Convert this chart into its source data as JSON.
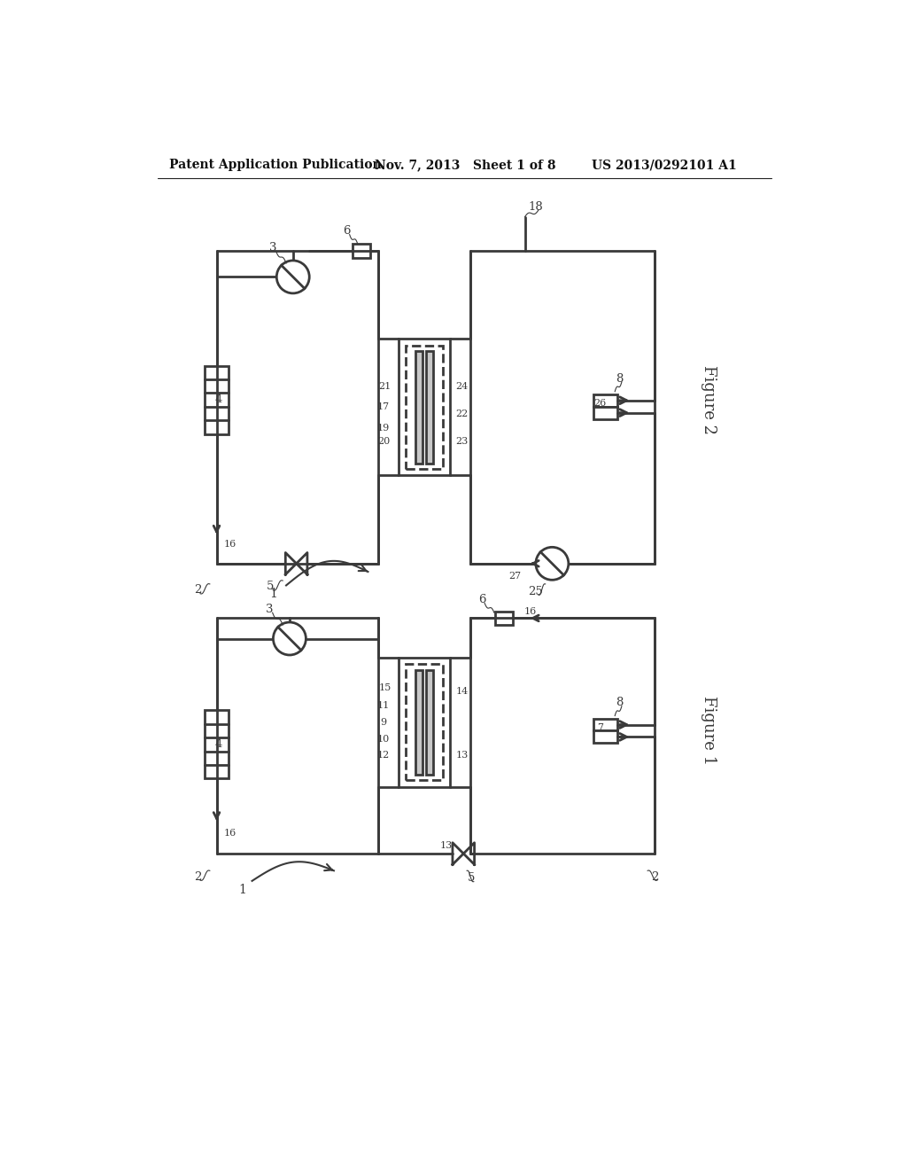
{
  "bg_color": "#ffffff",
  "line_color": "#3a3a3a",
  "lw": 2.0,
  "header_text": "Patent Application Publication",
  "header_date": "Nov. 7, 2013   Sheet 1 of 8",
  "header_patent": "US 2013/0292101 A1",
  "fig1_label": "Figure 1",
  "fig2_label": "Figure 2",
  "label_font": 9.5
}
